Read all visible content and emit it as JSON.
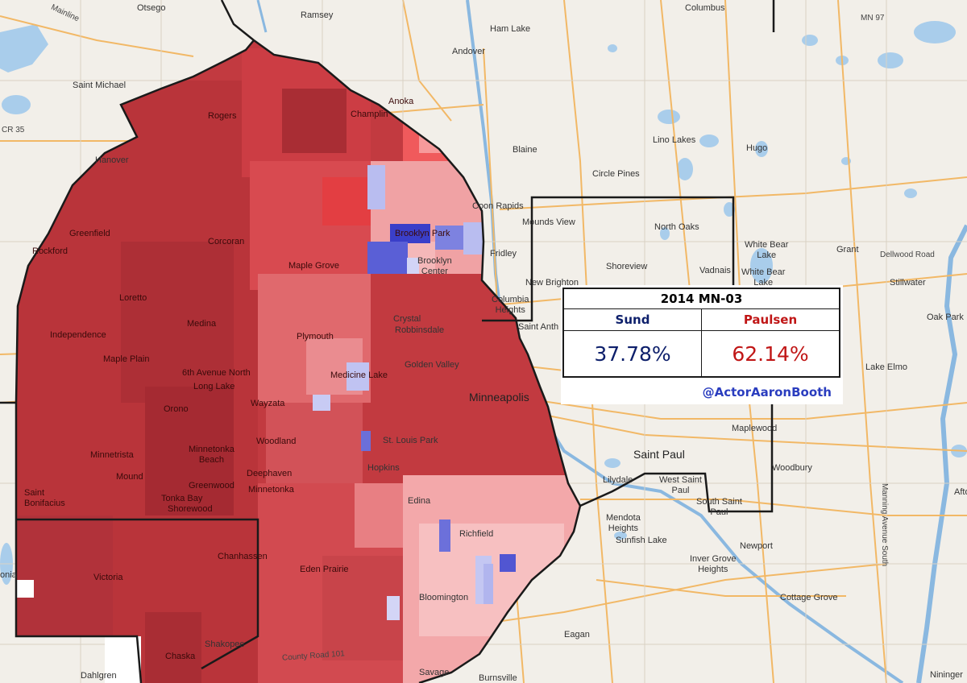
{
  "results": {
    "title": "2014 MN-03",
    "dem": {
      "name": "Sund",
      "pct": "37.78%",
      "color": "#0d1f6b"
    },
    "rep": {
      "name": "Paulsen",
      "pct": "62.14%",
      "color": "#c01616"
    },
    "credit": "@ActorAaronBooth"
  },
  "places": {
    "otsego": "Otsego",
    "ramsey": "Ramsey",
    "columbus": "Columbus",
    "mn97": "MN 97",
    "ham_lake": "Ham Lake",
    "mainline": "Mainline",
    "andover": "Andover",
    "saint_michael": "Saint Michael",
    "anoka": "Anoka",
    "champlin": "Champlin",
    "cr35": "CR 35",
    "rogers": "Rogers",
    "blaine": "Blaine",
    "lino_lakes": "Lino Lakes",
    "hugo": "Hugo",
    "hanover": "Hanover",
    "circle_pines": "Circle Pines",
    "coon_rapids": "Coon Rapids",
    "mounds_view": "Mounds View",
    "greenfield": "Greenfield",
    "corcoran": "Corcoran",
    "brooklyn_park": "Brooklyn Park",
    "north_oaks": "North Oaks",
    "white_bear_lake": "White Bear\nLake",
    "grant": "Grant",
    "dellwood_road": "Dellwood Road",
    "rockford": "Rockford",
    "maple_grove": "Maple Grove",
    "brooklyn_center": "Brooklyn\nCenter",
    "fridley": "Fridley",
    "shoreview": "Shoreview",
    "vadnais": "Vadnais",
    "white_bear_lake_2": "White Bear\nLake",
    "loretto": "Loretto",
    "new_brighton": "New Brighton",
    "stillwater": "Stillwater",
    "columbia_heights": "Columbia\nHeights",
    "medina": "Medina",
    "crystal": "Crystal",
    "robbinsdale": "Robbinsdale",
    "saint_anthony": "Saint Anth",
    "independence": "Independence",
    "oak_park": "Oak Park",
    "maple_plain": "Maple Plain",
    "plymouth": "Plymouth",
    "golden_valley": "Golden Valley",
    "lake_elmo": "Lake Elmo",
    "sixth_ave_north": "6th Avenue North",
    "medicine_lake": "Medicine Lake",
    "long_lake": "Long Lake",
    "minneapolis": "Minneapolis",
    "orono": "Orono",
    "wayzata": "Wayzata",
    "maplewood": "Maplewood",
    "minnetrista": "Minnetrista",
    "minnetonka_beach": "Minnetonka\nBeach",
    "woodland": "Woodland",
    "st_louis_park": "St. Louis Park",
    "saint_paul": "Saint Paul",
    "mound": "Mound",
    "deephaven": "Deephaven",
    "hopkins": "Hopkins",
    "woodbury": "Woodbury",
    "lilydale": "Lilydale",
    "west_saint_paul": "West Saint\nPaul",
    "greenwood": "Greenwood",
    "minnetonka": "Minnetonka",
    "tonka_bay": "Tonka Bay",
    "shorewood": "Shorewood",
    "saint_bonifacius": "Saint\nBonifacius",
    "edina": "Edina",
    "south_saint_paul": "South Saint\nPaul",
    "mendota_heights": "Mendota\nHeights",
    "richfield": "Richfield",
    "afton": "Afton",
    "sunfish_lake": "Sunfish Lake",
    "newport": "Newport",
    "chanhassen": "Chanhassen",
    "victoria": "Victoria",
    "eden_prairie": "Eden Prairie",
    "inver_grove_heights": "Inver Grove\nHeights",
    "manning_avenue_south": "Manning Avenue South",
    "waconia": "onia",
    "bloomington": "Bloomington",
    "cottage_grove": "Cottage Grove",
    "eagan": "Eagan",
    "shakopee": "Shakopee",
    "county_road_101": "County Road 101",
    "chaska": "Chaska",
    "dahlgren": "Dahlgren",
    "savage": "Savage",
    "burnsville": "Burnsville",
    "nininger": "Nininger"
  }
}
